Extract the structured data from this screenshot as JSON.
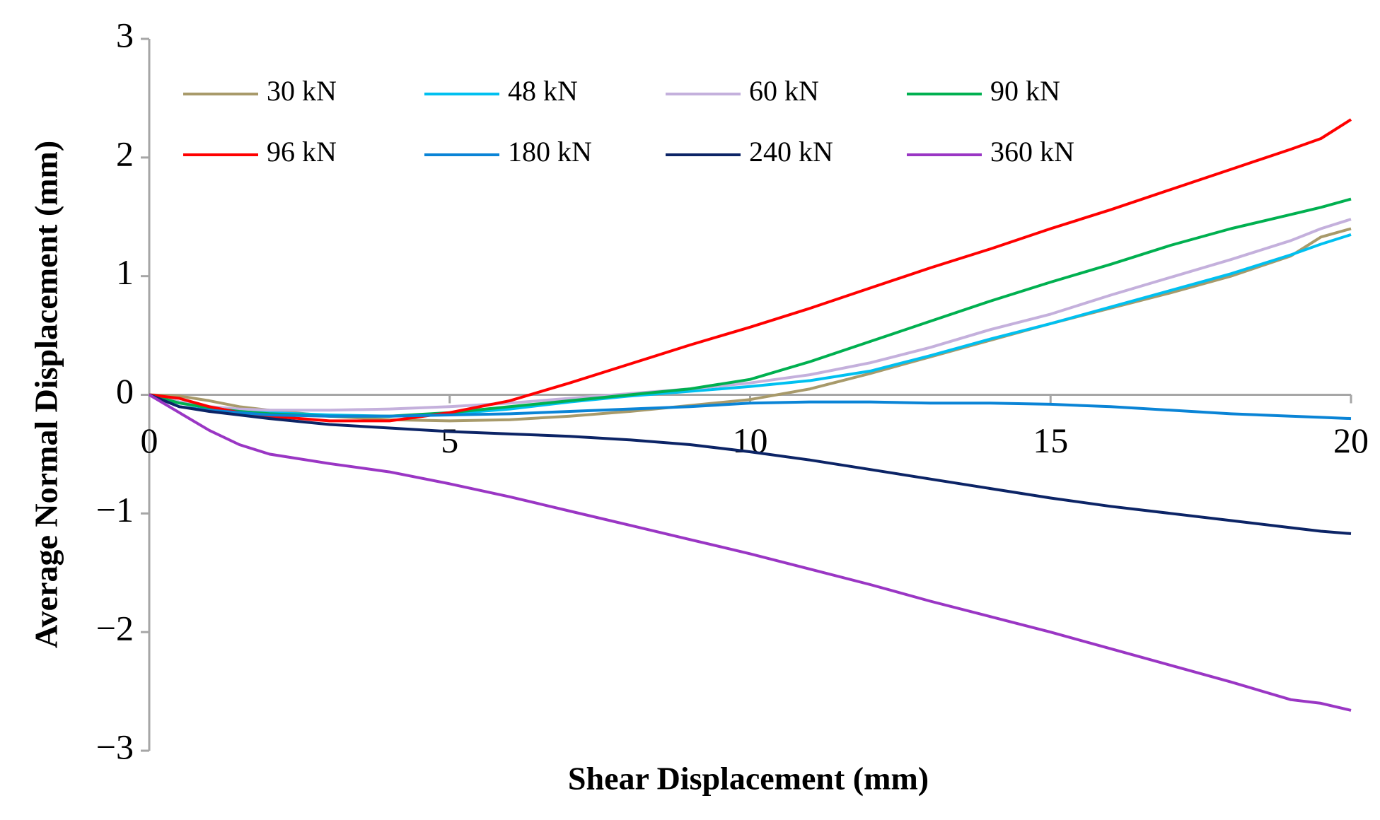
{
  "chart_data": {
    "type": "line",
    "xlabel": "Shear Displacement (mm)",
    "ylabel": "Average Normal Displacement (mm)",
    "xlim": [
      0,
      20
    ],
    "ylim": [
      -3,
      3
    ],
    "xticks": [
      0,
      5,
      10,
      15,
      20
    ],
    "yticks": [
      3,
      2,
      1,
      0,
      {
        "value": -1,
        "label": "−1"
      },
      {
        "value": -2,
        "label": "−2"
      },
      {
        "value": -3,
        "label": "−3"
      }
    ],
    "grid": false,
    "legend": "upper left",
    "x": [
      0,
      0.5,
      1,
      1.5,
      2,
      3,
      4,
      5,
      6,
      7,
      8,
      9,
      10,
      11,
      12,
      13,
      14,
      15,
      16,
      17,
      18,
      19,
      19.5,
      20
    ],
    "series": [
      {
        "name": "30 kN",
        "color": "#a89a6a",
        "values": [
          0,
          -0.01,
          -0.05,
          -0.1,
          -0.13,
          -0.18,
          -0.21,
          -0.22,
          -0.21,
          -0.18,
          -0.14,
          -0.09,
          -0.04,
          0.05,
          0.18,
          0.32,
          0.46,
          0.6,
          0.73,
          0.86,
          1.0,
          1.17,
          1.33,
          1.4
        ]
      },
      {
        "name": "48 kN",
        "color": "#00c0f0",
        "values": [
          0,
          -0.06,
          -0.1,
          -0.13,
          -0.15,
          -0.17,
          -0.18,
          -0.16,
          -0.12,
          -0.06,
          -0.01,
          0.03,
          0.07,
          0.12,
          0.2,
          0.33,
          0.47,
          0.6,
          0.74,
          0.88,
          1.02,
          1.18,
          1.27,
          1.35
        ]
      },
      {
        "name": "60 kN",
        "color": "#c4b0dc",
        "values": [
          0,
          -0.06,
          -0.1,
          -0.12,
          -0.13,
          -0.13,
          -0.12,
          -0.1,
          -0.07,
          -0.03,
          0.01,
          0.05,
          0.1,
          0.17,
          0.27,
          0.4,
          0.55,
          0.68,
          0.84,
          0.99,
          1.14,
          1.3,
          1.4,
          1.48
        ]
      },
      {
        "name": "90 kN",
        "color": "#00b050",
        "values": [
          0,
          -0.07,
          -0.11,
          -0.14,
          -0.16,
          -0.18,
          -0.18,
          -0.15,
          -0.1,
          -0.05,
          0.0,
          0.05,
          0.13,
          0.28,
          0.45,
          0.62,
          0.79,
          0.95,
          1.1,
          1.26,
          1.4,
          1.52,
          1.58,
          1.65
        ]
      },
      {
        "name": "96 kN",
        "color": "#ff0000",
        "values": [
          0,
          -0.03,
          -0.1,
          -0.15,
          -0.18,
          -0.22,
          -0.22,
          -0.15,
          -0.05,
          0.1,
          0.26,
          0.42,
          0.57,
          0.73,
          0.9,
          1.07,
          1.23,
          1.4,
          1.56,
          1.73,
          1.9,
          2.07,
          2.16,
          2.32
        ]
      },
      {
        "name": "180 kN",
        "color": "#0a84d6",
        "values": [
          0,
          -0.1,
          -0.13,
          -0.15,
          -0.17,
          -0.18,
          -0.18,
          -0.17,
          -0.16,
          -0.14,
          -0.12,
          -0.1,
          -0.07,
          -0.06,
          -0.06,
          -0.07,
          -0.07,
          -0.08,
          -0.1,
          -0.13,
          -0.16,
          -0.18,
          -0.19,
          -0.2
        ]
      },
      {
        "name": "240 kN",
        "color": "#0c2466",
        "values": [
          0,
          -0.1,
          -0.14,
          -0.17,
          -0.2,
          -0.25,
          -0.28,
          -0.31,
          -0.33,
          -0.35,
          -0.38,
          -0.42,
          -0.48,
          -0.55,
          -0.63,
          -0.71,
          -0.79,
          -0.87,
          -0.94,
          -1.0,
          -1.06,
          -1.12,
          -1.15,
          -1.17
        ]
      },
      {
        "name": "360 kN",
        "color": "#9a36c4",
        "values": [
          0,
          -0.15,
          -0.3,
          -0.42,
          -0.5,
          -0.58,
          -0.65,
          -0.75,
          -0.86,
          -0.98,
          -1.1,
          -1.22,
          -1.34,
          -1.47,
          -1.6,
          -1.74,
          -1.87,
          -2.0,
          -2.14,
          -2.28,
          -2.42,
          -2.57,
          -2.6,
          -2.66
        ]
      }
    ]
  }
}
